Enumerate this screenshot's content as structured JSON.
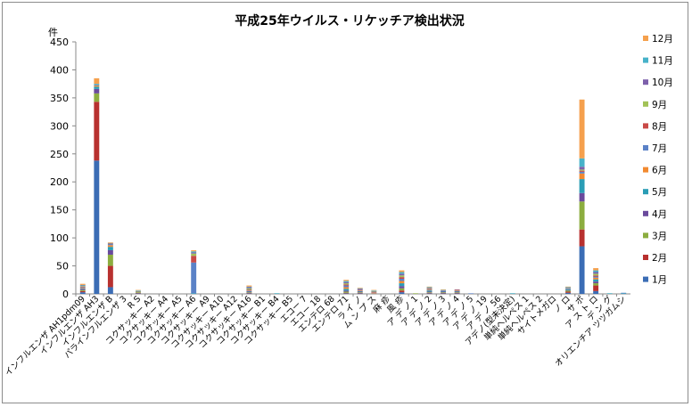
{
  "chart_data": {
    "type": "bar",
    "stacked": true,
    "title": "平成25年ウイルス・リケッチア検出状況",
    "ylabel": "件",
    "xlabel": "",
    "ylim": [
      0,
      450
    ],
    "yticks": [
      0,
      50,
      100,
      150,
      200,
      250,
      300,
      350,
      400,
      450
    ],
    "grid": false,
    "legend_position": "right",
    "categories": [
      "インフルエンザ AH1pdm09",
      "インフルエンザ AH3",
      "インフルエンザ B",
      "パラインフルエンザ 3",
      "R S",
      "コクサッキー A2",
      "コクサッキー A4",
      "コクサッキー A5",
      "コクサッキー A6",
      "コクサッキー A9",
      "コクサッキー A10",
      "コクサッキー A12",
      "コクサッキー A16",
      "コクサッキー B1",
      "コクサッキー B4",
      "コクサッキー B5",
      "エコー 7",
      "エコー 18",
      "エンテロ 68",
      "エンテロ 71",
      "ラ イ ノ",
      "ム ン プ ス",
      "麻 疹",
      "風 疹",
      "ア デ ノ 1",
      "ア デ ノ 2",
      "ア デ ノ 3",
      "ア デ ノ 4",
      "ア デ ノ 5",
      "ア デ ノ 19",
      "ア デ ノ 56",
      "アデノ(型未決定)",
      "単純ヘルペス 1",
      "単純ヘルペス 2",
      "サイトメガロ",
      "ノ ロ",
      "サ ポ",
      "ア ス ト ロ",
      "デ ン グ",
      "オリエンチア ツツガムシ"
    ],
    "series": [
      {
        "name": "1月",
        "color": "#3b6db5",
        "values": [
          3,
          238,
          12,
          0,
          1,
          0,
          0,
          0,
          0,
          0,
          0,
          0,
          1,
          0,
          0,
          0,
          0,
          0,
          0,
          1,
          1,
          0,
          0,
          3,
          0,
          1,
          1,
          1,
          0,
          0,
          0,
          0,
          0,
          0,
          0,
          2,
          85,
          5,
          0,
          0
        ]
      },
      {
        "name": "2月",
        "color": "#b8312f",
        "values": [
          2,
          105,
          38,
          0,
          1,
          0,
          0,
          0,
          0,
          0,
          0,
          0,
          1,
          0,
          0,
          0,
          0,
          0,
          0,
          1,
          1,
          0,
          0,
          3,
          0,
          1,
          1,
          1,
          0,
          0,
          0,
          0,
          0,
          0,
          0,
          2,
          30,
          10,
          0,
          0
        ]
      },
      {
        "name": "3月",
        "color": "#8cad3f",
        "values": [
          2,
          15,
          20,
          0,
          1,
          0,
          0,
          0,
          0,
          0,
          0,
          0,
          1,
          0,
          0,
          0,
          0,
          0,
          0,
          2,
          1,
          0,
          0,
          4,
          1,
          1,
          1,
          1,
          0,
          0,
          0,
          0,
          0,
          0,
          0,
          2,
          50,
          4,
          0,
          0
        ]
      },
      {
        "name": "4月",
        "color": "#6a4a9c",
        "values": [
          2,
          8,
          8,
          0,
          0,
          0,
          0,
          0,
          0,
          0,
          0,
          0,
          1,
          0,
          0,
          0,
          0,
          0,
          0,
          2,
          1,
          0,
          0,
          4,
          0,
          1,
          1,
          1,
          0,
          0,
          0,
          0,
          0,
          0,
          0,
          1,
          15,
          3,
          0,
          0
        ]
      },
      {
        "name": "5月",
        "color": "#2a9db5",
        "values": [
          1,
          4,
          6,
          0,
          0,
          0,
          0,
          0,
          1,
          0,
          0,
          0,
          1,
          0,
          1,
          0,
          0,
          0,
          0,
          3,
          1,
          0,
          0,
          5,
          0,
          2,
          1,
          1,
          0,
          0,
          0,
          1,
          0,
          0,
          0,
          1,
          25,
          4,
          1,
          1
        ]
      },
      {
        "name": "6月",
        "color": "#f28a30",
        "values": [
          1,
          2,
          3,
          0,
          0,
          0,
          0,
          0,
          0,
          0,
          0,
          0,
          1,
          0,
          0,
          0,
          0,
          0,
          0,
          3,
          1,
          1,
          0,
          4,
          0,
          1,
          0,
          1,
          0,
          0,
          0,
          0,
          0,
          0,
          0,
          0,
          10,
          3,
          0,
          0
        ]
      },
      {
        "name": "7月",
        "color": "#5b82c7",
        "values": [
          1,
          1,
          2,
          0,
          0,
          0,
          0,
          0,
          55,
          0,
          0,
          0,
          1,
          0,
          0,
          0,
          0,
          0,
          0,
          3,
          1,
          1,
          0,
          4,
          0,
          1,
          0,
          1,
          1,
          0,
          0,
          0,
          0,
          0,
          0,
          1,
          3,
          2,
          0,
          1
        ]
      },
      {
        "name": "8月",
        "color": "#c94a47",
        "values": [
          1,
          0,
          1,
          0,
          0,
          0,
          0,
          0,
          12,
          0,
          0,
          0,
          1,
          0,
          0,
          0,
          0,
          0,
          0,
          2,
          1,
          1,
          0,
          3,
          0,
          1,
          0,
          1,
          0,
          0,
          0,
          0,
          0,
          0,
          0,
          0,
          2,
          2,
          0,
          0
        ]
      },
      {
        "name": "9月",
        "color": "#a2c257",
        "values": [
          1,
          0,
          0,
          0,
          1,
          0,
          0,
          0,
          4,
          0,
          0,
          0,
          2,
          0,
          0,
          0,
          0,
          0,
          0,
          2,
          0,
          1,
          0,
          3,
          0,
          1,
          0,
          0,
          0,
          0,
          0,
          0,
          0,
          0,
          0,
          1,
          2,
          3,
          0,
          0
        ]
      },
      {
        "name": "10月",
        "color": "#7d60ab",
        "values": [
          1,
          0,
          0,
          0,
          1,
          0,
          0,
          0,
          2,
          0,
          0,
          0,
          2,
          0,
          0,
          0,
          0,
          0,
          0,
          2,
          1,
          1,
          0,
          3,
          0,
          1,
          1,
          0,
          0,
          0,
          0,
          0,
          0,
          0,
          0,
          1,
          5,
          3,
          0,
          0
        ]
      },
      {
        "name": "11月",
        "color": "#47b2c9",
        "values": [
          1,
          2,
          1,
          0,
          1,
          0,
          0,
          0,
          2,
          0,
          0,
          0,
          1,
          0,
          0,
          0,
          0,
          0,
          0,
          2,
          1,
          1,
          0,
          3,
          0,
          1,
          1,
          0,
          0,
          0,
          0,
          0,
          0,
          0,
          0,
          1,
          15,
          3,
          0,
          0
        ]
      },
      {
        "name": "12月",
        "color": "#f5a04d",
        "values": [
          2,
          10,
          1,
          0,
          1,
          0,
          0,
          0,
          2,
          0,
          0,
          0,
          2,
          0,
          0,
          0,
          0,
          0,
          0,
          2,
          1,
          1,
          0,
          3,
          0,
          1,
          1,
          0,
          0,
          0,
          0,
          0,
          0,
          0,
          0,
          1,
          105,
          4,
          0,
          0
        ]
      }
    ]
  }
}
